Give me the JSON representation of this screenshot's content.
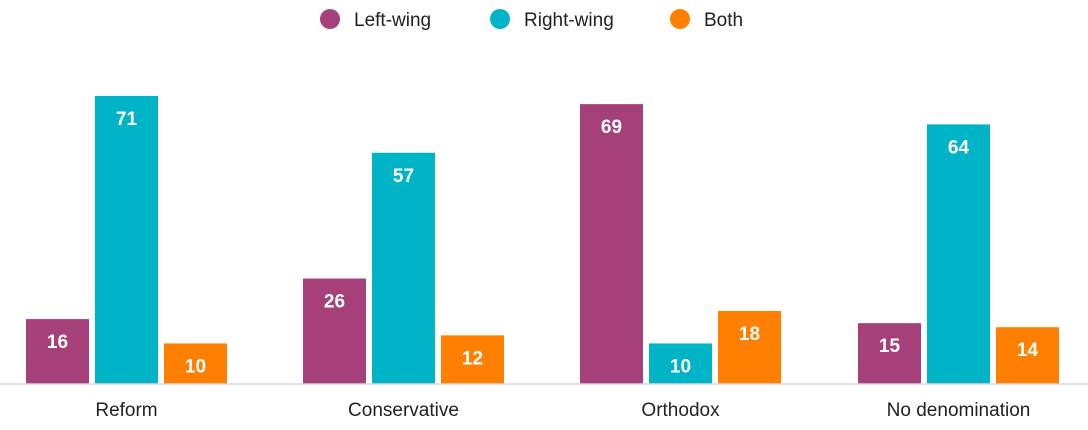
{
  "chart_data": {
    "type": "bar",
    "categories": [
      "Reform",
      "Conservative",
      "Orthodox",
      "No denomination"
    ],
    "series": [
      {
        "name": "Left-wing",
        "color": "#A6407A",
        "values": [
          16,
          26,
          69,
          15
        ]
      },
      {
        "name": "Right-wing",
        "color": "#00B4C8",
        "values": [
          71,
          57,
          10,
          64
        ]
      },
      {
        "name": "Both",
        "color": "#FF8000",
        "values": [
          10,
          12,
          18,
          14
        ]
      }
    ],
    "ylim": [
      0,
      75
    ],
    "grid": false,
    "legend_position": "top-center",
    "data_labels": true
  }
}
